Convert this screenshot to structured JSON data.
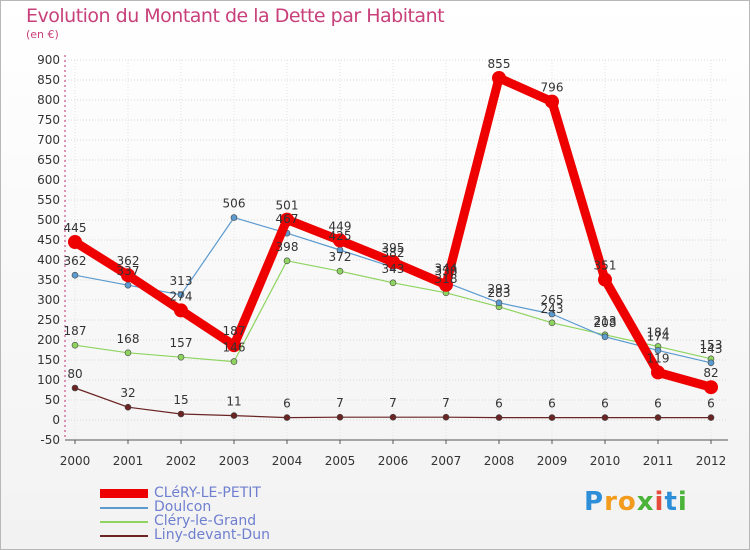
{
  "title": "Evolution du Montant de la Dette par Habitant",
  "subtitle": "(en €)",
  "logo": {
    "letters": [
      "P",
      "r",
      "o",
      "x",
      "i",
      "t",
      "i"
    ],
    "colors": [
      "#2e8fd8",
      "#f29b1d",
      "#f29b1d",
      "#4bb339",
      "#e64c3c",
      "#2e8fd8",
      "#4bb339"
    ]
  },
  "chart_data": {
    "type": "line",
    "title": "Evolution du Montant de la Dette par Habitant",
    "ylabel": "(en €)",
    "xlabel": "",
    "categories": [
      "2000",
      "2001",
      "2002",
      "2003",
      "2004",
      "2005",
      "2006",
      "2007",
      "2008",
      "2009",
      "2010",
      "2011",
      "2012"
    ],
    "ylim": [
      -50,
      900
    ],
    "yticks": [
      -50,
      0,
      50,
      100,
      150,
      200,
      250,
      300,
      350,
      400,
      450,
      500,
      550,
      600,
      650,
      700,
      750,
      800,
      850,
      900
    ],
    "grid": true,
    "legend_position": "bottom-left",
    "series": [
      {
        "name": "CLéRY-LE-PETIT",
        "color": "#ee0000",
        "width": 9,
        "marker": 7,
        "values": [
          445,
          362,
          274,
          187,
          501,
          449,
          395,
          338,
          855,
          796,
          351,
          119,
          82
        ],
        "labels": [
          "445",
          "362",
          "274",
          "187",
          "501",
          "449",
          "395",
          "338",
          "855",
          "796",
          "351",
          "119",
          "82"
        ]
      },
      {
        "name": "Doulcon",
        "color": "#5b9bd0",
        "width": 1.2,
        "marker": 3,
        "values": [
          362,
          337,
          313,
          506,
          467,
          425,
          382,
          344,
          293,
          265,
          208,
          174,
          143
        ],
        "labels": [
          "362",
          "337",
          "313",
          "506",
          "467",
          "425",
          "382",
          "344",
          "293",
          "265",
          "208",
          "174",
          "143"
        ]
      },
      {
        "name": "Cléry-le-Grand",
        "color": "#8fd460",
        "width": 1.2,
        "marker": 3,
        "values": [
          187,
          168,
          157,
          146,
          398,
          372,
          343,
          318,
          283,
          243,
          213,
          184,
          153
        ],
        "labels": [
          "187",
          "168",
          "157",
          "146",
          "398",
          "372",
          "343",
          "318",
          "283",
          "243",
          "213",
          "184",
          "153"
        ]
      },
      {
        "name": "Liny-devant-Dun",
        "color": "#6b2424",
        "width": 1.2,
        "marker": 3,
        "values": [
          80,
          32,
          15,
          11,
          6,
          7,
          7,
          7,
          6,
          6,
          6,
          6,
          6
        ],
        "labels": [
          "80",
          "32",
          "15",
          "11",
          "6",
          "7",
          "7",
          "7",
          "6",
          "6",
          "6",
          "6",
          "6"
        ]
      }
    ]
  }
}
